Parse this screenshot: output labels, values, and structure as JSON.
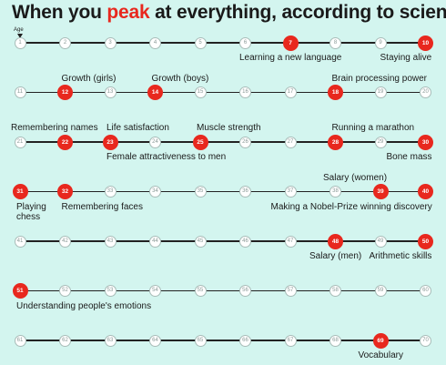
{
  "title": {
    "pre": "When you ",
    "highlight": "peak",
    "post": " at everything, according to science"
  },
  "age_label": "Age",
  "colors": {
    "background": "#d3f5ef",
    "accent": "#e8281e",
    "line": "#222222"
  },
  "ages_per_row": 10,
  "rows": 7,
  "peaks": [
    7,
    10,
    12,
    14,
    18,
    22,
    23,
    25,
    28,
    30,
    31,
    32,
    39,
    40,
    48,
    50,
    51,
    69
  ],
  "labels": [
    {
      "age": 7,
      "text": "Learning a new language",
      "pos": "below",
      "align": "center"
    },
    {
      "age": 10,
      "text": "Staying alive",
      "pos": "below",
      "align": "right"
    },
    {
      "age": 12,
      "text": "Growth (girls)",
      "pos": "above",
      "align": "start"
    },
    {
      "age": 14,
      "text": "Growth (boys)",
      "pos": "above",
      "align": "start"
    },
    {
      "age": 18,
      "text": "Brain processing power",
      "pos": "above",
      "align": "start"
    },
    {
      "age": 22,
      "text": "Remembering names",
      "pos": "above",
      "align": "right"
    },
    {
      "age": 23,
      "text": "Life satisfaction",
      "pos": "above",
      "align": "start"
    },
    {
      "age": 23,
      "text": "Female attractiveness to men",
      "pos": "below",
      "align": "start"
    },
    {
      "age": 25,
      "text": "Muscle strength",
      "pos": "above",
      "align": "start"
    },
    {
      "age": 28,
      "text": "Running a marathon",
      "pos": "above",
      "align": "start"
    },
    {
      "age": 30,
      "text": "Bone mass",
      "pos": "below",
      "align": "right"
    },
    {
      "age": 39,
      "text": "Salary (women)",
      "pos": "above",
      "align": "right"
    },
    {
      "age": 31,
      "text": "Playing\nchess",
      "pos": "below",
      "align": "start"
    },
    {
      "age": 32,
      "text": "Remembering faces",
      "pos": "below",
      "align": "start"
    },
    {
      "age": 40,
      "text": "Making a Nobel-Prize winning discovery",
      "pos": "below",
      "align": "right"
    },
    {
      "age": 48,
      "text": "Salary (men)",
      "pos": "below",
      "align": "center"
    },
    {
      "age": 50,
      "text": "Arithmetic skills",
      "pos": "below",
      "align": "right"
    },
    {
      "age": 51,
      "text": "Understanding people's emotions",
      "pos": "below",
      "align": "start"
    },
    {
      "age": 69,
      "text": "Vocabulary",
      "pos": "below",
      "align": "center"
    }
  ]
}
